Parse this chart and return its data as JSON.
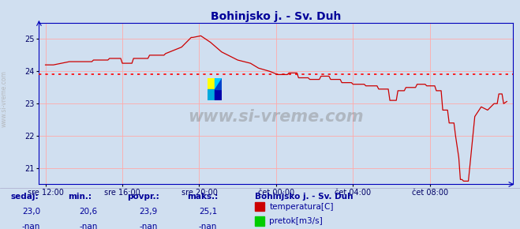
{
  "title": "Bohinjsko j. - Sv. Duh",
  "title_color": "#000099",
  "bg_color": "#d0dff0",
  "plot_bg_color": "#d0dff0",
  "footer_bg": "#e8f0f8",
  "grid_color": "#ffaaaa",
  "border_color": "#0000bb",
  "line_color": "#cc0000",
  "avg_line_color": "#ff0000",
  "avg_value": 23.9,
  "ylim_low": 20.5,
  "ylim_high": 25.5,
  "yticks": [
    21,
    22,
    23,
    24,
    25
  ],
  "tick_color": "#000066",
  "x_labels": [
    "sre 12:00",
    "sre 16:00",
    "sre 20:00",
    "čet 00:00",
    "čet 04:00",
    "čet 08:00"
  ],
  "footer_text_color": "#000099",
  "footer_labels": [
    "sedaj:",
    "min.:",
    "povpr.:",
    "maks.:"
  ],
  "footer_values_row1": [
    "23,0",
    "20,6",
    "23,9",
    "25,1"
  ],
  "footer_values_row2": [
    "-nan",
    "-nan",
    "-nan",
    "-nan"
  ],
  "footer_station": "Bohinjsko j. - Sv. Duh",
  "legend_temp_color": "#cc0000",
  "legend_flow_color": "#00cc00",
  "watermark_text": "www.si-vreme.com",
  "sidebar_text": "www.si-vreme.com"
}
